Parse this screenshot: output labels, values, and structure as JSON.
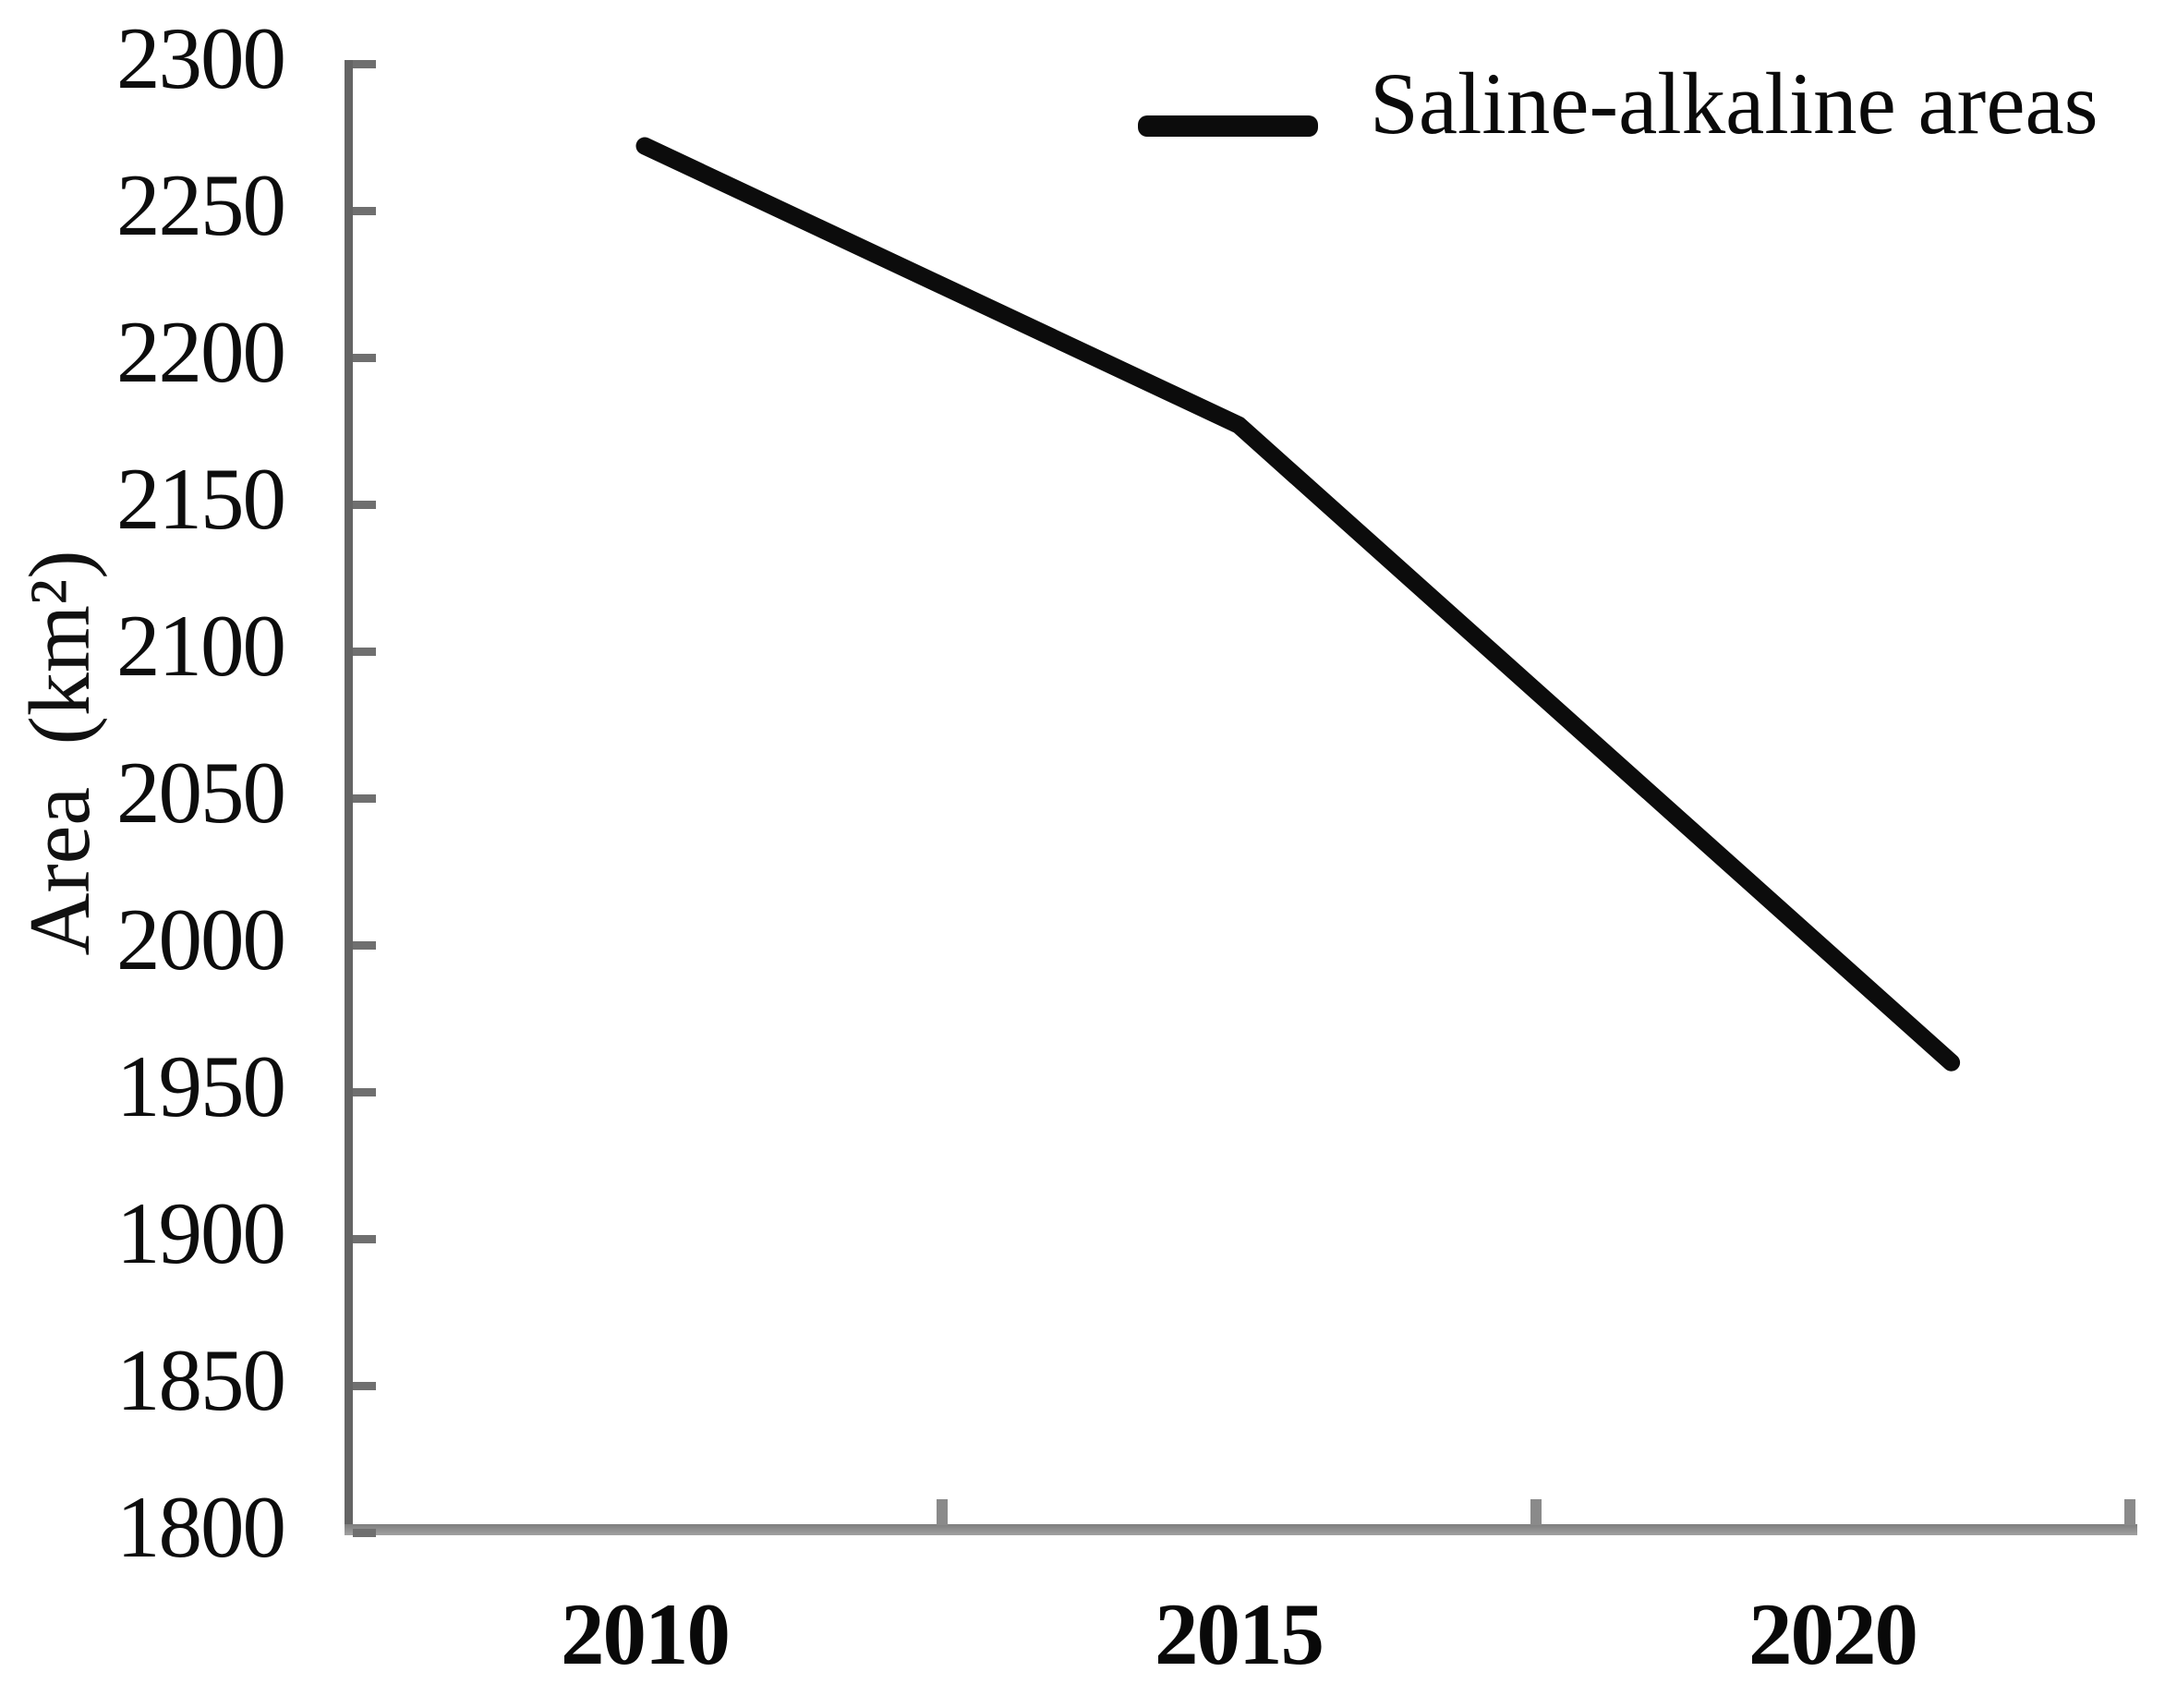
{
  "colors": {
    "line": "#0c0c0c",
    "axis": "#8a8a8a",
    "spine": "#646464",
    "tick": "#6f6f6f",
    "text": "#0a0a0a"
  },
  "chart_data": {
    "type": "line",
    "title": "",
    "xlabel": "",
    "ylabel": "Area (km²)",
    "x_tick_labels": [
      "2010",
      "2015",
      "2020"
    ],
    "x_label_years": [
      2010,
      2015,
      2020
    ],
    "y_ticks": [
      2300,
      2250,
      2200,
      2150,
      2100,
      2050,
      2000,
      1950,
      1900,
      1850,
      1800
    ],
    "ylim": [
      1800,
      2300
    ],
    "grid": false,
    "legend": {
      "position": "top-right",
      "entries": [
        {
          "label": "Saline-alkaline areas",
          "swatch": "thick-line"
        }
      ]
    },
    "series": [
      {
        "name": "Saline-alkaline areas",
        "x": [
          2010,
          2015,
          2021
        ],
        "y": [
          2272,
          2177,
          1960
        ]
      }
    ]
  }
}
